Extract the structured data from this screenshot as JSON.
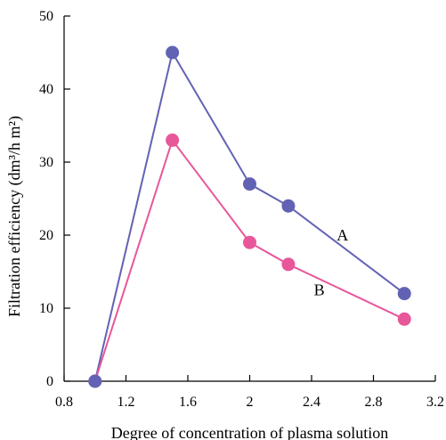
{
  "chart_data": {
    "type": "line",
    "xlabel": "Degree of concentration of plasma solution",
    "ylabel": "Filtration efficiency (dm³/h m²)",
    "xlim": [
      0.8,
      3.2
    ],
    "ylim": [
      0,
      50
    ],
    "x_ticks": [
      0.8,
      1.2,
      1.6,
      2.0,
      2.4,
      2.8,
      3.2
    ],
    "x_tick_labels": [
      "0.8",
      "1.2",
      "1.6",
      "2",
      "2.4",
      "2.8",
      "3.2"
    ],
    "y_ticks": [
      0,
      10,
      20,
      30,
      40,
      50
    ],
    "y_tick_labels": [
      "0",
      "10",
      "20",
      "30",
      "40",
      "50"
    ],
    "grid": false,
    "series": [
      {
        "name": "A",
        "color": "#6262b4",
        "x": [
          1.0,
          1.5,
          2.0,
          2.25,
          3.0
        ],
        "values": [
          0,
          45,
          27,
          24,
          12
        ]
      },
      {
        "name": "B",
        "color": "#e8579a",
        "x": [
          1.0,
          1.5,
          2.0,
          2.25,
          3.0
        ],
        "values": [
          0,
          33,
          19,
          16,
          8.5
        ]
      }
    ]
  }
}
